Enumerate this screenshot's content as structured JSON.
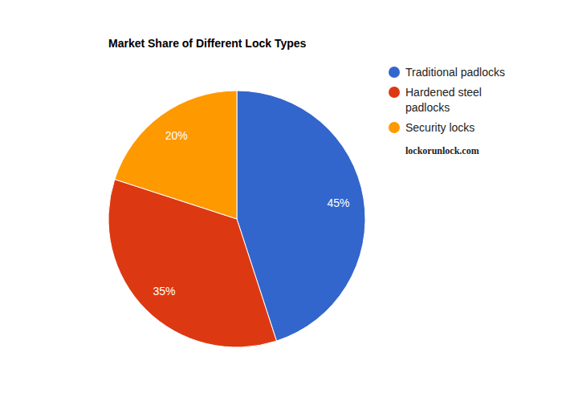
{
  "chart_data": {
    "type": "pie",
    "title": "Market Share of Different Lock Types",
    "categories": [
      "Traditional padlocks",
      "Hardened steel padlocks",
      "Security locks"
    ],
    "values": [
      45,
      35,
      20
    ],
    "value_labels": [
      "45%",
      "35%",
      "20%"
    ],
    "colors": [
      "#3366cc",
      "#dc3912",
      "#ff9900"
    ],
    "data_labels": true,
    "legend": "right",
    "annotations": [
      "lockorunlock.com"
    ]
  }
}
